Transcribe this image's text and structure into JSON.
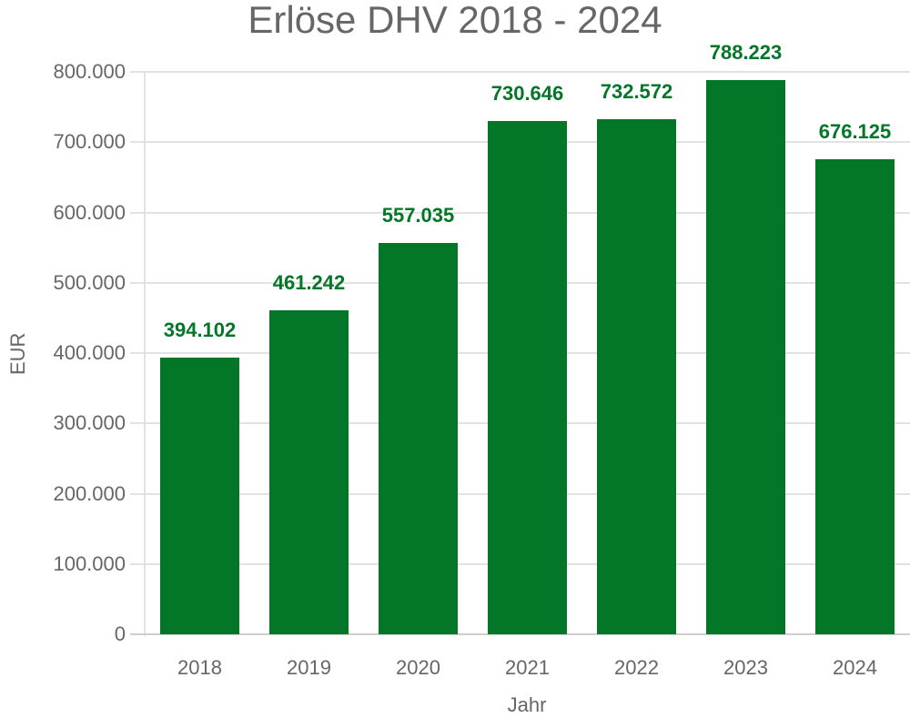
{
  "chart": {
    "title": "Erlöse DHV 2018 - 2024",
    "ylabel": "EUR",
    "xlabel": "Jahr",
    "bar_color": "#047628",
    "text_color": "#666666",
    "grid_color": "#e2e2e2",
    "yticks": [
      "0",
      "100.000",
      "200.000",
      "300.000",
      "400.000",
      "500.000",
      "600.000",
      "700.000",
      "800.000"
    ],
    "categories": [
      "2018",
      "2019",
      "2020",
      "2021",
      "2022",
      "2023",
      "2024"
    ],
    "value_labels": [
      "394.102",
      "461.242",
      "557.035",
      "730.646",
      "732.572",
      "788.223",
      "676.125"
    ]
  },
  "chart_data": {
    "type": "bar",
    "title": "Erlöse DHV 2018 - 2024",
    "xlabel": "Jahr",
    "ylabel": "EUR",
    "categories": [
      "2018",
      "2019",
      "2020",
      "2021",
      "2022",
      "2023",
      "2024"
    ],
    "values": [
      394102,
      461242,
      557035,
      730646,
      732572,
      788223,
      676125
    ],
    "ylim": [
      0,
      800000
    ],
    "yticks": [
      0,
      100000,
      200000,
      300000,
      400000,
      500000,
      600000,
      700000,
      800000
    ],
    "grid": true,
    "legend": null,
    "data_labels": true
  }
}
